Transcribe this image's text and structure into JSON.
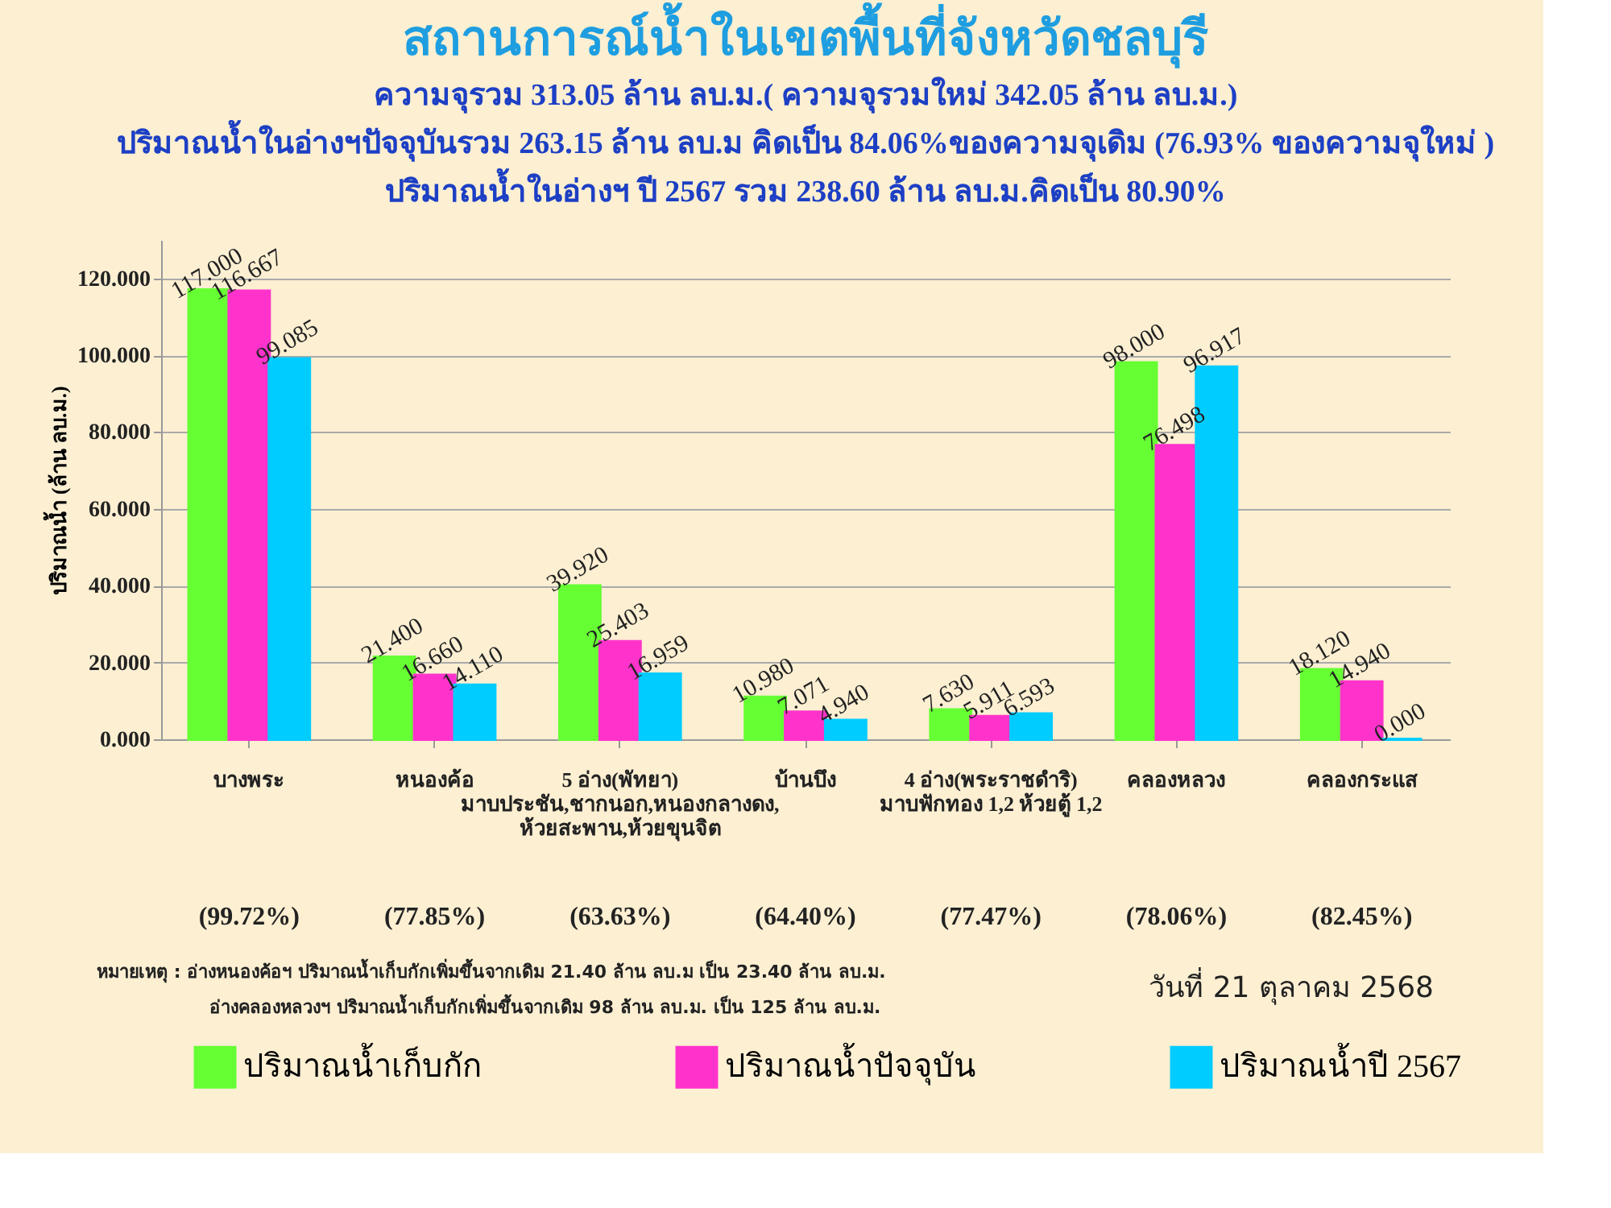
{
  "chart_data": {
    "type": "bar",
    "title": "สถานการณ์น้ำในเขตพื้นที่จังหวัดชลบุรี",
    "subtitle": "ความจุรวม  313.05 ล้าน ลบ.ม.( ความจุรวมใหม่ 342.05 ล้าน ลบ.ม.)\nปริมาณน้ำในอ่างฯปัจจุบันรวม 263.15 ล้าน ลบ.ม คิดเป็น 84.06%ของความจุเดิม (76.93% ของความจุใหม่ )\nปริมาณน้ำในอ่างฯ ปี 2567 รวม 238.60 ล้าน ลบ.ม.คิดเป็น 80.90%",
    "ylabel": "ปริมาณน้ำ (ล้าน ลบ.ม.)",
    "categories": [
      "บางพระ",
      "หนองค้อ",
      "5 อ่าง(พัทยา)\nมาบประชัน,ชากนอก,หนองกลางดง,\nห้วยสะพาน,ห้วยขุนจิต",
      "บ้านบึง",
      "4 อ่าง(พระราชดำริ)\nมาบฟักทอง 1,2 ห้วยตู้ 1,2",
      "คลองหลวง",
      "คลองกระแส"
    ],
    "series": [
      {
        "name": "ปริมาณน้ำเก็บกัก",
        "color": "#66ff33",
        "values": [
          117.0,
          21.4,
          39.92,
          10.98,
          7.63,
          98.0,
          18.12
        ],
        "value_labels": [
          "117.000",
          "21.400",
          "39.920",
          "10.980",
          "7.630",
          "98.000",
          "18.120"
        ]
      },
      {
        "name": "ปริมาณน้ำปัจจุบัน",
        "color": "#ff33cc",
        "values": [
          116.667,
          16.66,
          25.403,
          7.071,
          5.911,
          76.498,
          14.94
        ],
        "value_labels": [
          "116.667",
          "16.660",
          "25.403",
          "7.071",
          "5.911",
          "76.498",
          "14.940"
        ]
      },
      {
        "name": "ปริมาณน้ำปี 2567",
        "color": "#00ccff",
        "values": [
          99.085,
          14.11,
          16.959,
          4.94,
          6.593,
          96.917,
          0.0
        ],
        "value_labels": [
          "99.085",
          "14.110",
          "16.959",
          "4.940",
          "6.593",
          "96.917",
          "0.000"
        ]
      }
    ],
    "ylim": [
      0,
      130
    ],
    "yticks": [
      {
        "value": 0,
        "label": "0.000"
      },
      {
        "value": 20,
        "label": "20.000"
      },
      {
        "value": 40,
        "label": "40.000"
      },
      {
        "value": 60,
        "label": "60.000"
      },
      {
        "value": 80,
        "label": "80.000"
      },
      {
        "value": 100,
        "label": "100.000"
      },
      {
        "value": 120,
        "label": "120.000"
      }
    ],
    "grid": "y",
    "legend": "bottom",
    "annotations": [
      "(99.72%)",
      "(77.85%)",
      "(63.63%)",
      "(64.40%)",
      "(77.47%)",
      "(78.06%)",
      "(82.45%)",
      "หมายเหตุ :  อ่างหนองค้อฯ ปริมาณน้ำเก็บกักเพิ่มขึ้นจากเดิม 21.40 ล้าน ลบ.ม เป็น 23.40 ล้าน ลบ.ม.",
      "อ่างคลองหลวงฯ ปริมาณน้ำเก็บกักเพิ่มขึ้นจากเดิม 98 ล้าน ลบ.ม. เป็น 125 ล้าน ลบ.ม.",
      "วันที่ 21 ตุลาคม 2568"
    ]
  }
}
